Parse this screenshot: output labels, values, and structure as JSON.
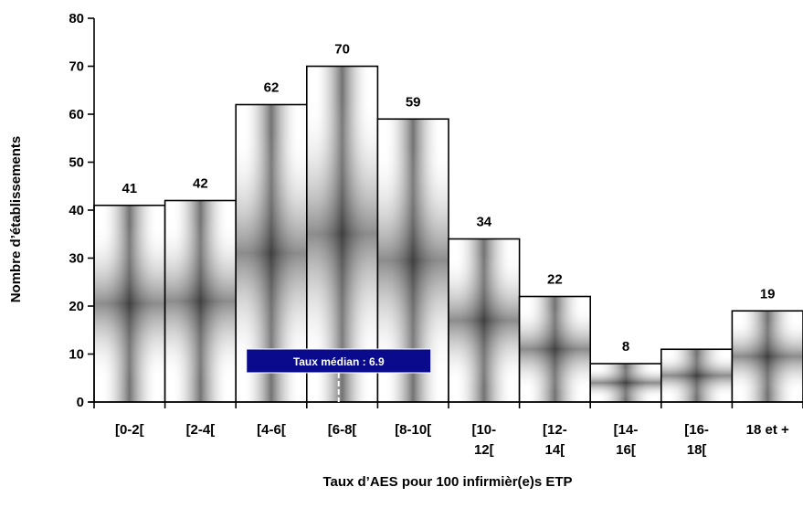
{
  "chart_data": {
    "type": "bar",
    "categories": [
      [
        "[0-2["
      ],
      [
        "[2-4["
      ],
      [
        "[4-6["
      ],
      [
        "[6-8["
      ],
      [
        "[8-10["
      ],
      [
        "[10-",
        "12["
      ],
      [
        "[12-",
        "14["
      ],
      [
        "[14-",
        "16["
      ],
      [
        "[16-",
        "18["
      ],
      [
        "18 et +"
      ]
    ],
    "values": [
      41,
      42,
      62,
      70,
      59,
      34,
      22,
      8,
      11,
      19
    ],
    "data_labels": [
      "41",
      "42",
      "62",
      "70",
      "59",
      "34",
      "22",
      "8",
      "",
      "19"
    ],
    "xlabel": "Taux d’AES pour 100 infirmièr(e)s ETP",
    "ylabel": "Nombre d’établissements",
    "ylim": [
      0,
      80
    ],
    "yticks": [
      0,
      10,
      20,
      30,
      40,
      50,
      60,
      70,
      80
    ],
    "grid": false,
    "legend": "none",
    "annotation": {
      "text": "Taux médian : 6.9",
      "x_value": 6.9,
      "bg_color": "#0a0a8c",
      "text_color": "#ffffff"
    },
    "bar_fill_edge": "#ffffff",
    "bar_fill_center": "#1a1a1a",
    "bar_stroke": "#000000"
  }
}
